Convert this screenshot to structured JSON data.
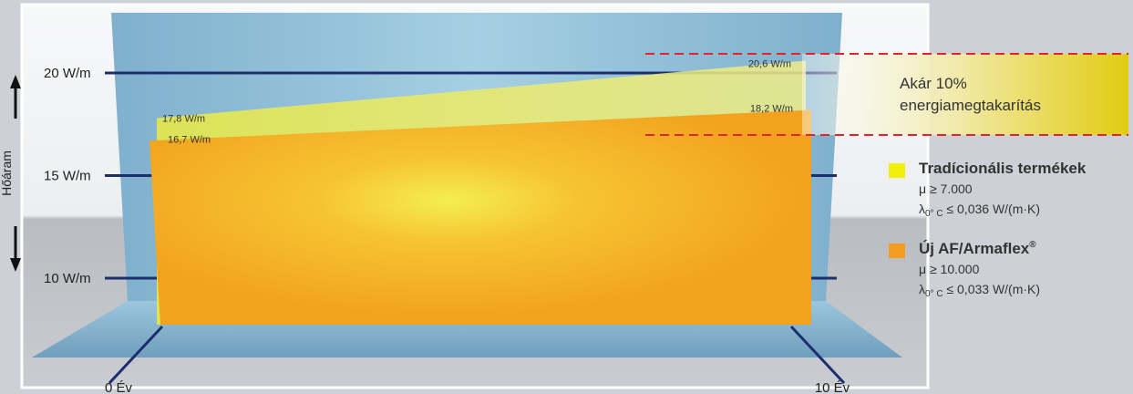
{
  "chart_data": {
    "type": "area",
    "title": "",
    "xlabel": "",
    "ylabel": "Hőáram",
    "x": [
      0,
      10
    ],
    "x_tick_labels": [
      "0 Év",
      "10 Év"
    ],
    "y_tick_labels": [
      "20 W/m",
      "15 W/m",
      "10 W/m"
    ],
    "y_ticks": [
      20,
      15,
      10
    ],
    "ylim": [
      8,
      23
    ],
    "series": [
      {
        "name": "Tradícionális termékek",
        "color": "#e6e84a",
        "values": [
          17.8,
          20.6
        ],
        "labels": [
          "17,8 W/m",
          "20,6 W/m"
        ],
        "spec_mu": "μ ≥ 7.000",
        "spec_lambda_prefix": "λ",
        "spec_lambda_sub": "0° C",
        "spec_lambda_value": " ≤ 0,036 W/(m·K)"
      },
      {
        "name": "Új AF/Armaflex",
        "name_mark": "®",
        "color": "#f2a21e",
        "values": [
          16.7,
          18.2
        ],
        "labels": [
          "16,7 W/m",
          "18,2 W/m"
        ],
        "spec_mu": "μ ≥ 10.000",
        "spec_lambda_prefix": "λ",
        "spec_lambda_sub": "0° C",
        "spec_lambda_value": " ≤ 0,033 W/(m·K)"
      }
    ],
    "annotation": {
      "line1": "Akár 10%",
      "line2": "energiamegtakarítás"
    }
  }
}
